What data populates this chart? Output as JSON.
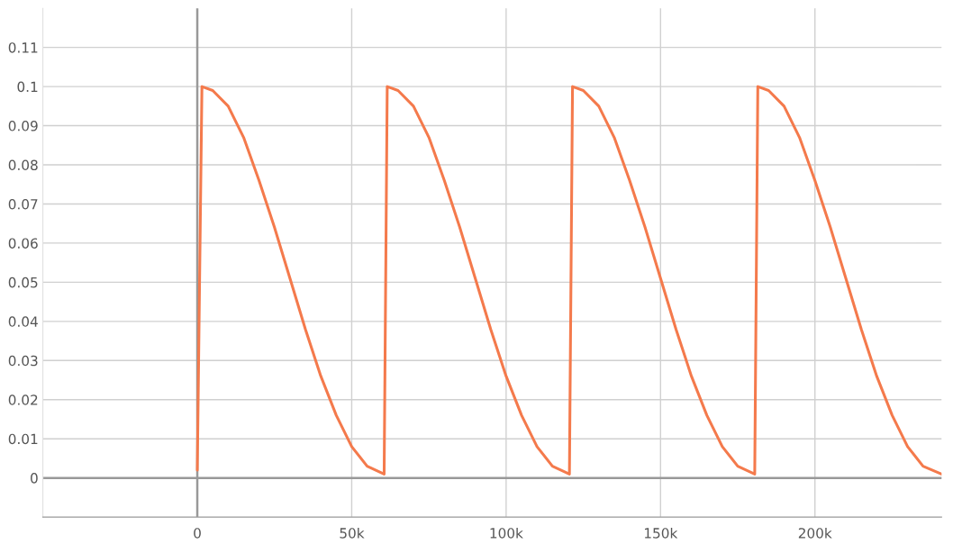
{
  "chart_data": {
    "type": "line",
    "x": [
      0,
      1.5,
      5,
      10,
      15,
      20,
      25,
      30,
      35,
      40,
      45,
      50,
      55,
      60.5,
      61.5,
      65,
      70,
      75,
      80,
      85,
      90,
      95,
      100,
      105,
      110,
      115,
      120.5,
      121.5,
      125,
      130,
      135,
      140,
      145,
      150,
      155,
      160,
      165,
      170,
      175,
      180.5,
      181.5,
      185,
      190,
      195,
      200,
      205,
      210,
      215,
      220,
      225,
      230,
      235,
      241
    ],
    "series": [
      {
        "color": "#f47a4c",
        "values": [
          0.002,
          0.1,
          0.099,
          0.095,
          0.087,
          0.076,
          0.064,
          0.051,
          0.038,
          0.026,
          0.016,
          0.008,
          0.003,
          0.001,
          0.1,
          0.099,
          0.095,
          0.087,
          0.076,
          0.064,
          0.051,
          0.038,
          0.026,
          0.016,
          0.008,
          0.003,
          0.001,
          0.1,
          0.099,
          0.095,
          0.087,
          0.076,
          0.064,
          0.051,
          0.038,
          0.026,
          0.016,
          0.008,
          0.003,
          0.001,
          0.1,
          0.099,
          0.095,
          0.087,
          0.076,
          0.064,
          0.051,
          0.038,
          0.026,
          0.016,
          0.008,
          0.003,
          0.001
        ]
      }
    ],
    "xlim": [
      -50,
      241
    ],
    "xticks": [
      {
        "value": 0,
        "label": "0"
      },
      {
        "value": 50,
        "label": "50k"
      },
      {
        "value": 100,
        "label": "100k"
      },
      {
        "value": 150,
        "label": "150k"
      },
      {
        "value": 200,
        "label": "200k"
      }
    ],
    "ylim": [
      -0.01,
      0.12
    ],
    "yticks": [
      0,
      0.01,
      0.02,
      0.03,
      0.04,
      0.05,
      0.06,
      0.07,
      0.08,
      0.09,
      0.1,
      0.11
    ],
    "grid": true
  }
}
